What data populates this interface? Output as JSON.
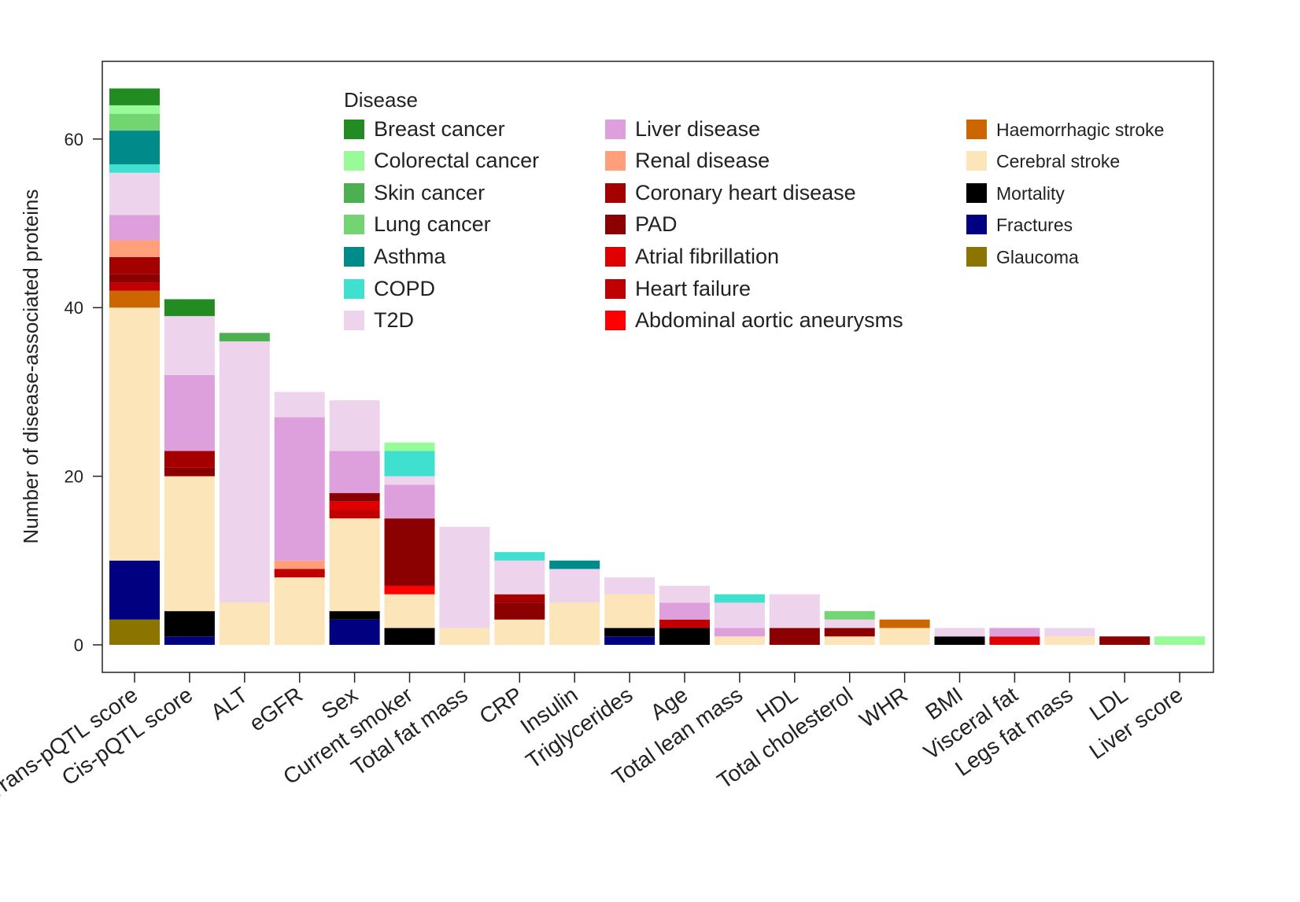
{
  "chart_data": {
    "type": "bar",
    "stacked": true,
    "title": "",
    "xlabel": "",
    "ylabel": "Number of disease-associated proteins",
    "ylim": [
      0,
      68
    ],
    "yticks": [
      0,
      20,
      40,
      60
    ],
    "grid": false,
    "legend_title": "Disease",
    "legend_position": "top-right",
    "categories": [
      "Trans-pQTL score",
      "Cis-pQTL score",
      "ALT",
      "eGFR",
      "Sex",
      "Current smoker",
      "Total fat mass",
      "CRP",
      "Insulin",
      "Triglycerides",
      "Age",
      "Total lean mass",
      "HDL",
      "Total cholesterol",
      "WHR",
      "BMI",
      "Visceral fat",
      "Legs fat mass",
      "LDL",
      "Liver score"
    ],
    "series": [
      {
        "name": "Breast cancer",
        "color": "#228B22",
        "values": [
          2,
          2,
          0,
          0,
          0,
          0,
          0,
          0,
          0,
          0,
          0,
          0,
          0,
          0,
          0,
          0,
          0,
          0,
          0,
          0
        ]
      },
      {
        "name": "Colorectal cancer",
        "color": "#98FB98",
        "values": [
          1,
          0,
          0,
          0,
          0,
          1,
          0,
          0,
          0,
          0,
          0,
          0,
          0,
          0,
          0,
          0,
          0,
          0,
          0,
          1
        ]
      },
      {
        "name": "Skin cancer",
        "color": "#4CAF50",
        "values": [
          0,
          0,
          1,
          0,
          0,
          0,
          0,
          0,
          0,
          0,
          0,
          0,
          0,
          0,
          0,
          0,
          0,
          0,
          0,
          0
        ]
      },
      {
        "name": "Lung cancer",
        "color": "#72D572",
        "values": [
          2,
          0,
          0,
          0,
          0,
          0,
          0,
          0,
          0,
          0,
          0,
          0,
          0,
          1,
          0,
          0,
          0,
          0,
          0,
          0
        ]
      },
      {
        "name": "Asthma",
        "color": "#008B8B",
        "values": [
          4,
          0,
          0,
          0,
          0,
          0,
          0,
          0,
          1,
          0,
          0,
          0,
          0,
          0,
          0,
          0,
          0,
          0,
          0,
          0
        ]
      },
      {
        "name": "COPD",
        "color": "#40E0D0",
        "values": [
          1,
          0,
          0,
          0,
          0,
          3,
          0,
          1,
          0,
          0,
          0,
          1,
          0,
          0,
          0,
          0,
          0,
          0,
          0,
          0
        ]
      },
      {
        "name": "T2D",
        "color": "#EDD3EC",
        "values": [
          5,
          7,
          31,
          3,
          6,
          1,
          12,
          4,
          4,
          2,
          2,
          3,
          4,
          1,
          0,
          1,
          0,
          1,
          0,
          0
        ]
      },
      {
        "name": "Liver disease",
        "color": "#DDA0DD",
        "values": [
          3,
          9,
          0,
          17,
          5,
          4,
          0,
          0,
          0,
          0,
          2,
          1,
          0,
          0,
          0,
          0,
          1,
          0,
          0,
          0
        ]
      },
      {
        "name": "Renal disease",
        "color": "#FFA07A",
        "values": [
          2,
          0,
          0,
          1,
          0,
          0,
          0,
          0,
          0,
          0,
          0,
          0,
          0,
          0,
          0,
          0,
          0,
          0,
          0,
          0
        ]
      },
      {
        "name": "Coronary heart disease",
        "color": "#A50000",
        "values": [
          2,
          2,
          0,
          0,
          0,
          0,
          0,
          1,
          0,
          0,
          0,
          0,
          0,
          0,
          0,
          0,
          0,
          0,
          0,
          0
        ]
      },
      {
        "name": "PAD",
        "color": "#8B0000",
        "values": [
          1,
          1,
          0,
          0,
          1,
          8,
          0,
          2,
          0,
          0,
          0,
          0,
          2,
          1,
          0,
          0,
          0,
          0,
          1,
          0
        ]
      },
      {
        "name": "Atrial fibrillation",
        "color": "#E00000",
        "values": [
          0,
          0,
          0,
          0,
          1,
          0,
          0,
          0,
          0,
          0,
          0,
          0,
          0,
          0,
          0,
          0,
          1,
          0,
          0,
          0
        ]
      },
      {
        "name": "Heart failure",
        "color": "#C00000",
        "values": [
          1,
          0,
          0,
          1,
          1,
          0,
          0,
          0,
          0,
          0,
          1,
          0,
          0,
          0,
          0,
          0,
          0,
          0,
          0,
          0
        ]
      },
      {
        "name": "Abdominal aortic aneurysms",
        "color": "#FF0000",
        "values": [
          0,
          0,
          0,
          0,
          0,
          1,
          0,
          0,
          0,
          0,
          0,
          0,
          0,
          0,
          0,
          0,
          0,
          0,
          0,
          0
        ]
      },
      {
        "name": "Haemorrhagic stroke",
        "color": "#CC6600",
        "values": [
          2,
          0,
          0,
          0,
          0,
          0,
          0,
          0,
          0,
          0,
          0,
          0,
          0,
          0,
          1,
          0,
          0,
          0,
          0,
          0
        ]
      },
      {
        "name": "Cerebral stroke",
        "color": "#FDE5BA",
        "values": [
          30,
          16,
          5,
          8,
          11,
          4,
          2,
          3,
          5,
          4,
          0,
          1,
          0,
          1,
          2,
          0,
          0,
          1,
          0,
          0
        ]
      },
      {
        "name": "Mortality",
        "color": "#000000",
        "values": [
          0,
          3,
          0,
          0,
          1,
          2,
          0,
          0,
          0,
          1,
          2,
          0,
          0,
          0,
          0,
          1,
          0,
          0,
          0,
          0
        ]
      },
      {
        "name": "Fractures",
        "color": "#000080",
        "values": [
          7,
          1,
          0,
          0,
          3,
          0,
          0,
          0,
          0,
          1,
          0,
          0,
          0,
          0,
          0,
          0,
          0,
          0,
          0,
          0
        ]
      },
      {
        "name": "Glaucoma",
        "color": "#8B7500",
        "values": [
          3,
          0,
          0,
          0,
          0,
          0,
          0,
          0,
          0,
          0,
          0,
          0,
          0,
          0,
          0,
          0,
          0,
          0,
          0,
          0
        ]
      }
    ]
  }
}
